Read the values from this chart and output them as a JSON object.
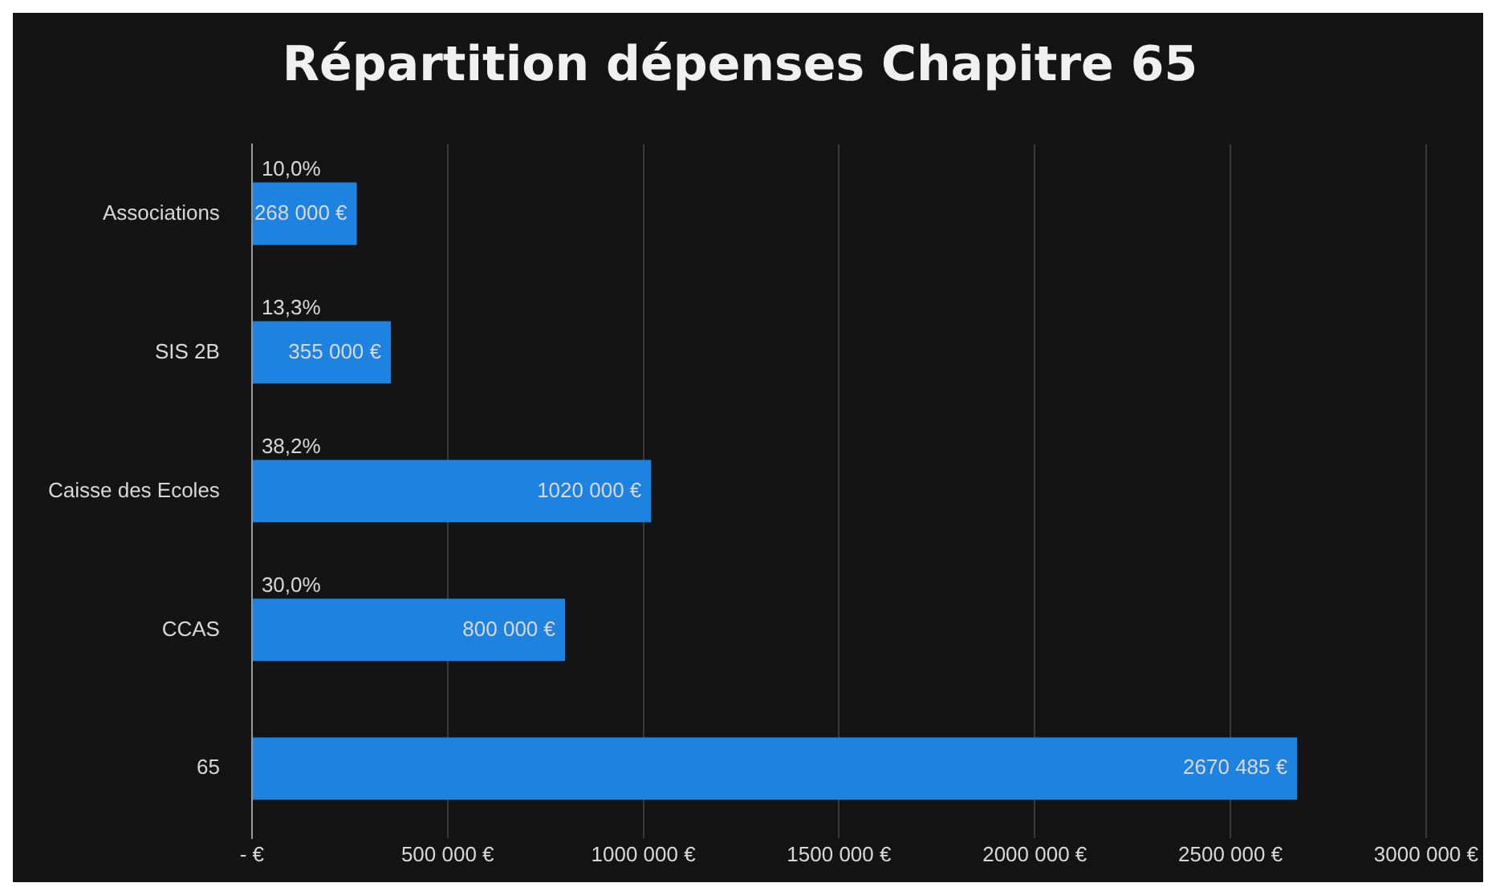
{
  "chart_data": {
    "type": "bar",
    "orientation": "horizontal",
    "title": "Répartition dépenses Chapitre 65",
    "categories": [
      "Associations",
      "SIS 2B",
      "Caisse des Ecoles",
      "CCAS",
      "65"
    ],
    "values": [
      268000,
      355000,
      1020000,
      800000,
      2670485
    ],
    "color": "#1e82e0",
    "value_labels": [
      "268 000 €",
      "355 000 €",
      "1020 000 €",
      "800 000 €",
      "2670 485 €"
    ],
    "annotations": [
      "10,0%",
      "13,3%",
      "38,2%",
      "30,0%"
    ],
    "xlim": [
      0,
      3000000
    ],
    "xticks": [
      {
        "value": 0,
        "label": "- €"
      },
      {
        "value": 500000,
        "label": "500 000 €"
      },
      {
        "value": 1000000,
        "label": "1000 000 €"
      },
      {
        "value": 1500000,
        "label": "1500 000 €"
      },
      {
        "value": 2000000,
        "label": "2000 000 €"
      },
      {
        "value": 2500000,
        "label": "2500 000 €"
      },
      {
        "value": 3000000,
        "label": "3000 000 €"
      }
    ],
    "grid": "x",
    "legend": false
  }
}
